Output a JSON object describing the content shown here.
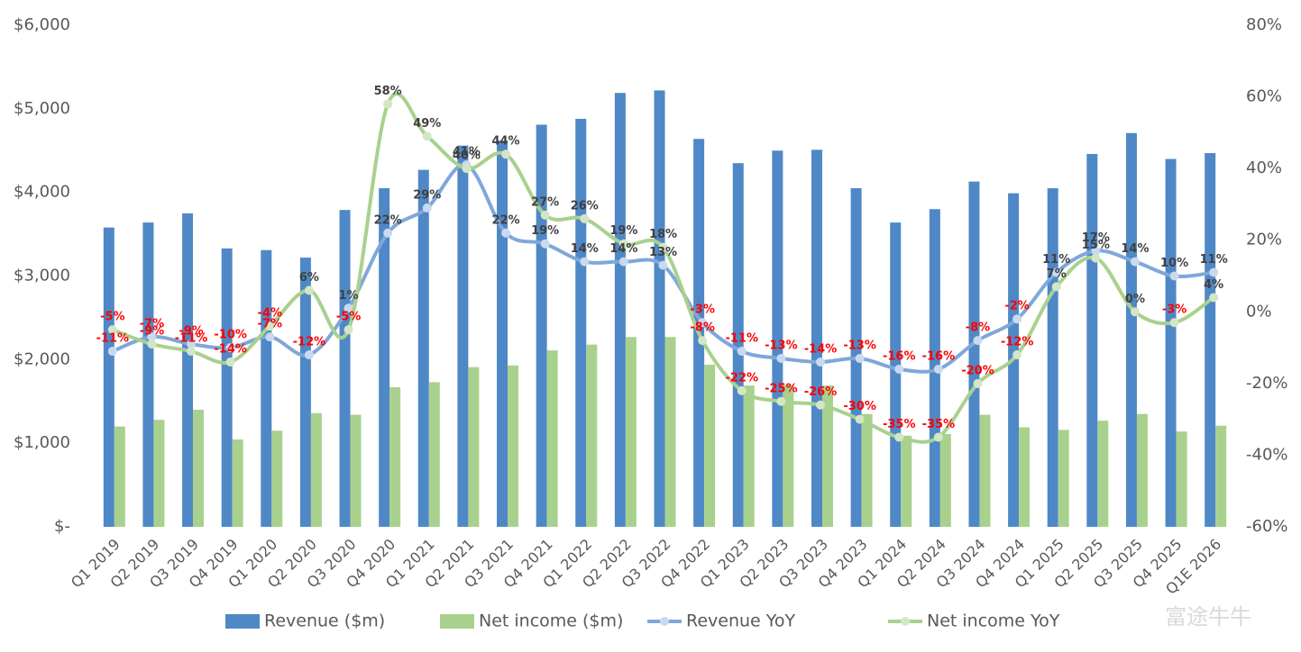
{
  "chart_data": {
    "type": "bar_line_combo",
    "categories": [
      "Q1 2019",
      "Q2 2019",
      "Q3 2019",
      "Q4 2019",
      "Q1 2020",
      "Q2 2020",
      "Q3 2020",
      "Q4 2020",
      "Q1 2021",
      "Q2 2021",
      "Q3 2021",
      "Q4 2021",
      "Q1 2022",
      "Q2 2022",
      "Q3 2022",
      "Q4 2022",
      "Q1 2023",
      "Q2 2023",
      "Q3 2023",
      "Q4 2023",
      "Q1 2024",
      "Q2 2024",
      "Q3 2024",
      "Q4 2024",
      "Q1 2025",
      "Q2 2025",
      "Q3 2025",
      "Q4 2025",
      "Q1E 2026"
    ],
    "series": [
      {
        "name": "Revenue ($m)",
        "type": "bar",
        "color": "#4f88c6",
        "values": [
          3580,
          3640,
          3750,
          3330,
          3310,
          3220,
          3790,
          4050,
          4270,
          4560,
          4620,
          4810,
          4880,
          5190,
          5220,
          4640,
          4350,
          4500,
          4510,
          4050,
          3640,
          3800,
          4130,
          3990,
          4050,
          4460,
          4710,
          4400,
          4470
        ]
      },
      {
        "name": "Net income ($m)",
        "type": "bar",
        "color": "#a9d18e",
        "values": [
          1200,
          1280,
          1400,
          1045,
          1150,
          1360,
          1340,
          1670,
          1730,
          1910,
          1930,
          2110,
          2180,
          2270,
          2270,
          1940,
          1690,
          1700,
          1690,
          1350,
          1090,
          1110,
          1340,
          1190,
          1160,
          1270,
          1350,
          1140,
          1210
        ]
      },
      {
        "name": "Revenue YoY",
        "type": "line",
        "axis": "y2",
        "color": "#7fa7d9",
        "marker_color": "#c9d9f0",
        "values": [
          -11,
          -7,
          -9,
          -10,
          -7,
          -12,
          1,
          22,
          29,
          41,
          22,
          19,
          14,
          14,
          13,
          -3,
          -11,
          -13,
          -14,
          -13,
          -16,
          -16,
          -8,
          -2,
          11,
          17,
          14,
          10,
          11
        ],
        "value_labels": [
          "-11%",
          "-7%",
          "-9%",
          "-10%",
          "-7%",
          "-12%",
          "1%",
          "22%",
          "29%",
          "41%",
          "22%",
          "19%",
          "14%",
          "14%",
          "13%",
          "-3%",
          "-11%",
          "-13%",
          "-14%",
          "-13%",
          "-16%",
          "-16%",
          "-8%",
          "-2%",
          "11%",
          "17%",
          "14%",
          "10%",
          "11%"
        ]
      },
      {
        "name": "Net income YoY",
        "type": "line",
        "axis": "y2",
        "color": "#a9d18e",
        "marker_color": "#d3e6c5",
        "values": [
          -5,
          -9,
          -11,
          -14,
          -4,
          6,
          -5,
          58,
          49,
          40,
          44,
          27,
          26,
          19,
          18,
          -8,
          -22,
          -25,
          -26,
          -30,
          -35,
          -35,
          -20,
          -12,
          7,
          15,
          0,
          -3,
          4
        ],
        "value_labels": [
          "-5%",
          "-9%",
          "-11%",
          "-14%",
          "-4%",
          "6%",
          "-5%",
          "58%",
          "49%",
          "40%",
          "44%",
          "27%",
          "26%",
          "19%",
          "18%",
          "-8%",
          "-22%",
          "-25%",
          "-26%",
          "-30%",
          "-35%",
          "-35%",
          "-20%",
          "-12%",
          "7%",
          "15%",
          "0%",
          "-3%",
          "4%"
        ]
      }
    ],
    "positive_label_color": "#404040",
    "negative_label_color": "#ff0000",
    "ylim": [
      0,
      6000
    ],
    "yticks": [
      {
        "value": 0,
        "label": "$-"
      },
      {
        "value": 1000,
        "label": "$1,000"
      },
      {
        "value": 2000,
        "label": "$2,000"
      },
      {
        "value": 3000,
        "label": "$3,000"
      },
      {
        "value": 4000,
        "label": "$4,000"
      },
      {
        "value": 5000,
        "label": "$5,000"
      },
      {
        "value": 6000,
        "label": "$6,000"
      }
    ],
    "y2lim": [
      -60,
      80
    ],
    "y2ticks": [
      {
        "value": -60,
        "label": "-60%"
      },
      {
        "value": -40,
        "label": "-40%"
      },
      {
        "value": -20,
        "label": "-20%"
      },
      {
        "value": 0,
        "label": "0%"
      },
      {
        "value": 20,
        "label": "20%"
      },
      {
        "value": 40,
        "label": "40%"
      },
      {
        "value": 60,
        "label": "60%"
      },
      {
        "value": 80,
        "label": "80%"
      }
    ],
    "grid": false,
    "legend": "bottom",
    "watermark": "富途牛牛"
  }
}
